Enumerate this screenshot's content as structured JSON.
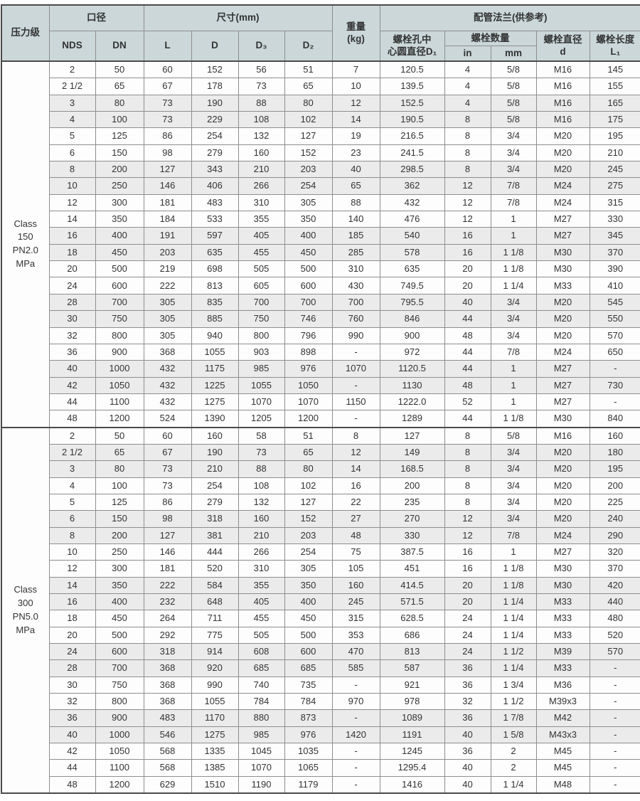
{
  "colors": {
    "header_bg": "#cbd7d9",
    "row_stripe": "#ebebeb",
    "row_plain": "#fdfdfd",
    "grid_line": "#8e8e8e",
    "outer_border": "#4b4b4b"
  },
  "table": {
    "header": {
      "pressure_class": "压力级",
      "bore": "口径",
      "nds": "NDS",
      "dn": "DN",
      "size": "尺寸(mm)",
      "l": "L",
      "d": "D",
      "d3": "D₃",
      "d2": "D₂",
      "weight": "重量\n(kg)",
      "flange": "配管法兰(供参考)",
      "bolt_circle": "螺栓孔中\n心圆直径D₁",
      "bolt_qty": "螺栓数量",
      "unit_in": "in",
      "unit_mm": "mm",
      "bolt_dia": "螺栓直径\nd",
      "bolt_len": "螺栓长度\nL₁"
    },
    "blocks": [
      {
        "class_label": "Class\n150\nPN2.0\nMPa",
        "rows": [
          {
            "shade": false,
            "cells": [
              "2",
              "50",
              "60",
              "152",
              "56",
              "51",
              "7",
              "120.5",
              "4",
              "5/8",
              "M16",
              "145"
            ]
          },
          {
            "shade": false,
            "cells": [
              "2 1/2",
              "65",
              "67",
              "178",
              "73",
              "65",
              "10",
              "139.5",
              "4",
              "5/8",
              "M16",
              "155"
            ]
          },
          {
            "shade": true,
            "cells": [
              "3",
              "80",
              "73",
              "190",
              "88",
              "80",
              "12",
              "152.5",
              "4",
              "5/8",
              "M16",
              "165"
            ]
          },
          {
            "shade": true,
            "cells": [
              "4",
              "100",
              "73",
              "229",
              "108",
              "102",
              "14",
              "190.5",
              "8",
              "5/8",
              "M16",
              "175"
            ]
          },
          {
            "shade": false,
            "cells": [
              "5",
              "125",
              "86",
              "254",
              "132",
              "127",
              "19",
              "216.5",
              "8",
              "3/4",
              "M20",
              "195"
            ]
          },
          {
            "shade": false,
            "cells": [
              "6",
              "150",
              "98",
              "279",
              "160",
              "152",
              "23",
              "241.5",
              "8",
              "3/4",
              "M20",
              "210"
            ]
          },
          {
            "shade": true,
            "cells": [
              "8",
              "200",
              "127",
              "343",
              "210",
              "203",
              "40",
              "298.5",
              "8",
              "3/4",
              "M20",
              "245"
            ]
          },
          {
            "shade": true,
            "cells": [
              "10",
              "250",
              "146",
              "406",
              "266",
              "254",
              "65",
              "362",
              "12",
              "7/8",
              "M24",
              "275"
            ]
          },
          {
            "shade": false,
            "cells": [
              "12",
              "300",
              "181",
              "483",
              "310",
              "305",
              "88",
              "432",
              "12",
              "7/8",
              "M24",
              "315"
            ]
          },
          {
            "shade": false,
            "cells": [
              "14",
              "350",
              "184",
              "533",
              "355",
              "350",
              "140",
              "476",
              "12",
              "1",
              "M27",
              "330"
            ]
          },
          {
            "shade": true,
            "cells": [
              "16",
              "400",
              "191",
              "597",
              "405",
              "400",
              "185",
              "540",
              "16",
              "1",
              "M27",
              "345"
            ]
          },
          {
            "shade": true,
            "cells": [
              "18",
              "450",
              "203",
              "635",
              "455",
              "450",
              "285",
              "578",
              "16",
              "1 1/8",
              "M30",
              "370"
            ]
          },
          {
            "shade": false,
            "cells": [
              "20",
              "500",
              "219",
              "698",
              "505",
              "500",
              "310",
              "635",
              "20",
              "1 1/8",
              "M30",
              "390"
            ]
          },
          {
            "shade": false,
            "cells": [
              "24",
              "600",
              "222",
              "813",
              "605",
              "600",
              "430",
              "749.5",
              "20",
              "1 1/4",
              "M33",
              "410"
            ]
          },
          {
            "shade": true,
            "cells": [
              "28",
              "700",
              "305",
              "835",
              "700",
              "700",
              "700",
              "795.5",
              "40",
              "3/4",
              "M20",
              "545"
            ]
          },
          {
            "shade": true,
            "cells": [
              "30",
              "750",
              "305",
              "885",
              "750",
              "746",
              "760",
              "846",
              "44",
              "3/4",
              "M20",
              "550"
            ]
          },
          {
            "shade": false,
            "cells": [
              "32",
              "800",
              "305",
              "940",
              "800",
              "796",
              "990",
              "900",
              "48",
              "3/4",
              "M20",
              "570"
            ]
          },
          {
            "shade": false,
            "cells": [
              "36",
              "900",
              "368",
              "1055",
              "903",
              "898",
              "-",
              "972",
              "44",
              "7/8",
              "M24",
              "650"
            ]
          },
          {
            "shade": true,
            "cells": [
              "40",
              "1000",
              "432",
              "1175",
              "985",
              "976",
              "1070",
              "1120.5",
              "44",
              "1",
              "M27",
              "-"
            ]
          },
          {
            "shade": true,
            "cells": [
              "42",
              "1050",
              "432",
              "1225",
              "1055",
              "1050",
              "-",
              "1130",
              "48",
              "1",
              "M27",
              "730"
            ]
          },
          {
            "shade": false,
            "cells": [
              "44",
              "1100",
              "432",
              "1275",
              "1070",
              "1070",
              "1150",
              "1222.0",
              "52",
              "1",
              "M27",
              "-"
            ]
          },
          {
            "shade": false,
            "cells": [
              "48",
              "1200",
              "524",
              "1390",
              "1205",
              "1200",
              "-",
              "1289",
              "44",
              "1 1/8",
              "M30",
              "840"
            ]
          }
        ]
      },
      {
        "class_label": "Class\n300\nPN5.0\nMPa",
        "rows": [
          {
            "shade": false,
            "cells": [
              "2",
              "50",
              "60",
              "160",
              "58",
              "51",
              "8",
              "127",
              "8",
              "5/8",
              "M16",
              "160"
            ]
          },
          {
            "shade": true,
            "cells": [
              "2 1/2",
              "65",
              "67",
              "190",
              "73",
              "65",
              "12",
              "149",
              "8",
              "3/4",
              "M20",
              "180"
            ]
          },
          {
            "shade": true,
            "cells": [
              "3",
              "80",
              "73",
              "210",
              "88",
              "80",
              "14",
              "168.5",
              "8",
              "3/4",
              "M20",
              "195"
            ]
          },
          {
            "shade": false,
            "cells": [
              "4",
              "100",
              "73",
              "254",
              "108",
              "102",
              "16",
              "200",
              "8",
              "3/4",
              "M20",
              "200"
            ]
          },
          {
            "shade": false,
            "cells": [
              "5",
              "125",
              "86",
              "279",
              "132",
              "127",
              "22",
              "235",
              "8",
              "3/4",
              "M20",
              "225"
            ]
          },
          {
            "shade": true,
            "cells": [
              "6",
              "150",
              "98",
              "318",
              "160",
              "152",
              "27",
              "270",
              "12",
              "3/4",
              "M20",
              "240"
            ]
          },
          {
            "shade": true,
            "cells": [
              "8",
              "200",
              "127",
              "381",
              "210",
              "203",
              "48",
              "330",
              "12",
              "7/8",
              "M24",
              "290"
            ]
          },
          {
            "shade": false,
            "cells": [
              "10",
              "250",
              "146",
              "444",
              "266",
              "254",
              "75",
              "387.5",
              "16",
              "1",
              "M27",
              "320"
            ]
          },
          {
            "shade": false,
            "cells": [
              "12",
              "300",
              "181",
              "520",
              "310",
              "305",
              "105",
              "451",
              "16",
              "1 1/8",
              "M30",
              "370"
            ]
          },
          {
            "shade": true,
            "cells": [
              "14",
              "350",
              "222",
              "584",
              "355",
              "350",
              "160",
              "414.5",
              "20",
              "1 1/8",
              "M30",
              "420"
            ]
          },
          {
            "shade": true,
            "cells": [
              "16",
              "400",
              "232",
              "648",
              "405",
              "400",
              "245",
              "571.5",
              "20",
              "1 1/4",
              "M33",
              "440"
            ]
          },
          {
            "shade": false,
            "cells": [
              "18",
              "450",
              "264",
              "711",
              "455",
              "450",
              "315",
              "628.5",
              "24",
              "1 1/4",
              "M33",
              "480"
            ]
          },
          {
            "shade": false,
            "cells": [
              "20",
              "500",
              "292",
              "775",
              "505",
              "500",
              "353",
              "686",
              "24",
              "1 1/4",
              "M33",
              "520"
            ]
          },
          {
            "shade": true,
            "cells": [
              "24",
              "600",
              "318",
              "914",
              "608",
              "600",
              "470",
              "813",
              "24",
              "1 1/2",
              "M39",
              "570"
            ]
          },
          {
            "shade": true,
            "cells": [
              "28",
              "700",
              "368",
              "920",
              "685",
              "685",
              "585",
              "587",
              "36",
              "1 1/4",
              "M33",
              "-"
            ]
          },
          {
            "shade": false,
            "cells": [
              "30",
              "750",
              "368",
              "990",
              "740",
              "735",
              "-",
              "921",
              "36",
              "1 3/4",
              "M36",
              "-"
            ]
          },
          {
            "shade": false,
            "cells": [
              "32",
              "800",
              "368",
              "1055",
              "784",
              "784",
              "970",
              "978",
              "32",
              "1 1/2",
              "M39x3",
              "-"
            ]
          },
          {
            "shade": true,
            "cells": [
              "36",
              "900",
              "483",
              "1170",
              "880",
              "873",
              "-",
              "1089",
              "36",
              "1 7/8",
              "M42",
              "-"
            ]
          },
          {
            "shade": true,
            "cells": [
              "40",
              "1000",
              "546",
              "1275",
              "985",
              "976",
              "1420",
              "1191",
              "40",
              "1 5/8",
              "M43x3",
              "-"
            ]
          },
          {
            "shade": false,
            "cells": [
              "42",
              "1050",
              "568",
              "1335",
              "1045",
              "1035",
              "-",
              "1245",
              "36",
              "2",
              "M45",
              "-"
            ]
          },
          {
            "shade": false,
            "cells": [
              "44",
              "1100",
              "568",
              "1385",
              "1070",
              "1065",
              "-",
              "1295.4",
              "40",
              "2",
              "M45",
              "-"
            ]
          },
          {
            "shade": false,
            "cells": [
              "48",
              "1200",
              "629",
              "1510",
              "1190",
              "1179",
              "-",
              "1416",
              "40",
              "1 1/4",
              "M48",
              "-"
            ]
          }
        ]
      }
    ]
  }
}
